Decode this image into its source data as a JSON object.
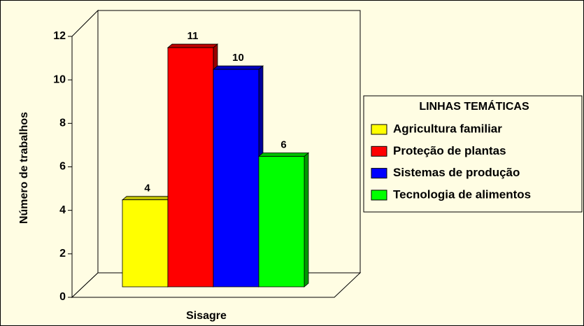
{
  "chart_data": {
    "type": "bar",
    "categories": [
      "Sisagre"
    ],
    "series": [
      {
        "name": "Agricultura familiar",
        "color": "#ffff00",
        "values": [
          4
        ]
      },
      {
        "name": "Proteção de plantas",
        "color": "#ff0000",
        "values": [
          11
        ]
      },
      {
        "name": "Sistemas de produção",
        "color": "#0000ff",
        "values": [
          10
        ]
      },
      {
        "name": "Tecnologia de alimentos",
        "color": "#00ff00",
        "values": [
          6
        ]
      }
    ],
    "y_label": "Número de trabalhos",
    "legend_title": "LINHAS TEMÁTICAS",
    "legend_position": "right",
    "ylim": [
      0,
      12
    ],
    "yticks": [
      0,
      2,
      4,
      6,
      8,
      10,
      12
    ]
  }
}
